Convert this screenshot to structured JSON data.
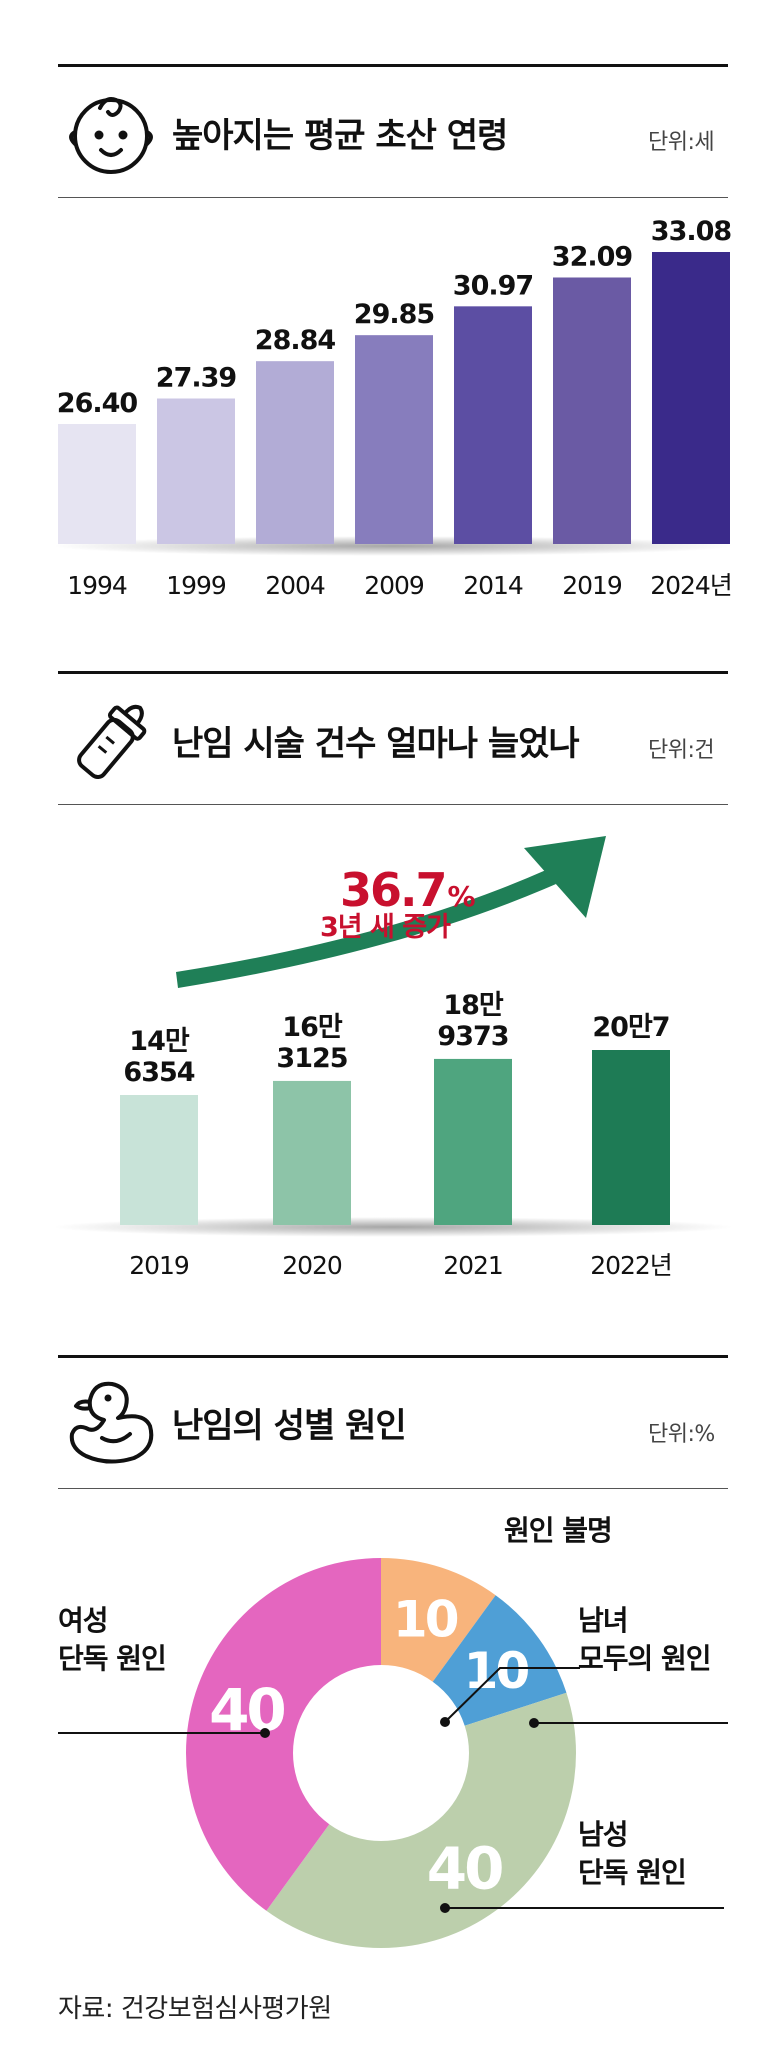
{
  "chart_data": [
    {
      "type": "bar",
      "title": "높아지는 평균 초산 연령",
      "unit": "단위:세",
      "categories": [
        "1994",
        "1999",
        "2004",
        "2009",
        "2014",
        "2019",
        "2024년"
      ],
      "values": [
        26.4,
        27.39,
        28.84,
        29.85,
        30.97,
        32.09,
        33.08
      ],
      "value_labels": [
        "26.40",
        "27.39",
        "28.84",
        "29.85",
        "30.97",
        "32.09",
        "33.08"
      ],
      "colors": [
        "#e6e4f2",
        "#cbc6e4",
        "#b2acd6",
        "#877dbd",
        "#5c4ea3",
        "#6a5aa4",
        "#3a2a8a"
      ]
    },
    {
      "type": "bar",
      "title": "난임 시술 건수 얼마나 늘었나",
      "unit": "단위:건",
      "categories": [
        "2019",
        "2020",
        "2021",
        "2022년"
      ],
      "values": [
        146354,
        163125,
        189373,
        200007
      ],
      "value_labels": [
        [
          "14만",
          "6354"
        ],
        [
          "16만",
          "3125"
        ],
        [
          "18만",
          "9373"
        ],
        [
          "20만7"
        ]
      ],
      "colors": [
        "#c8e3d8",
        "#8dc4a8",
        "#4fa57f",
        "#1e7b55"
      ],
      "annotation": {
        "percent": "36.7",
        "percent_sign": "%",
        "text": "3년 새 증가"
      }
    },
    {
      "type": "pie",
      "title": "난임의 성별 원인",
      "unit": "단위:%",
      "slices": [
        {
          "label": "원인 불명",
          "lines": [
            "원인 불명"
          ],
          "value": 10,
          "color": "#f8b47c"
        },
        {
          "label": "남녀 모두의 원인",
          "lines": [
            "남녀",
            "모두의 원인"
          ],
          "value": 10,
          "color": "#4f9fd6"
        },
        {
          "label": "남성 단독 원인",
          "lines": [
            "남성",
            "단독 원인"
          ],
          "value": 40,
          "color": "#bccfac"
        },
        {
          "label": "여성 단독 원인",
          "lines": [
            "여성",
            "단독 원인"
          ],
          "value": 40,
          "color": "#e466bf"
        }
      ]
    }
  ],
  "source": "자료: 건강보험심사평가원"
}
